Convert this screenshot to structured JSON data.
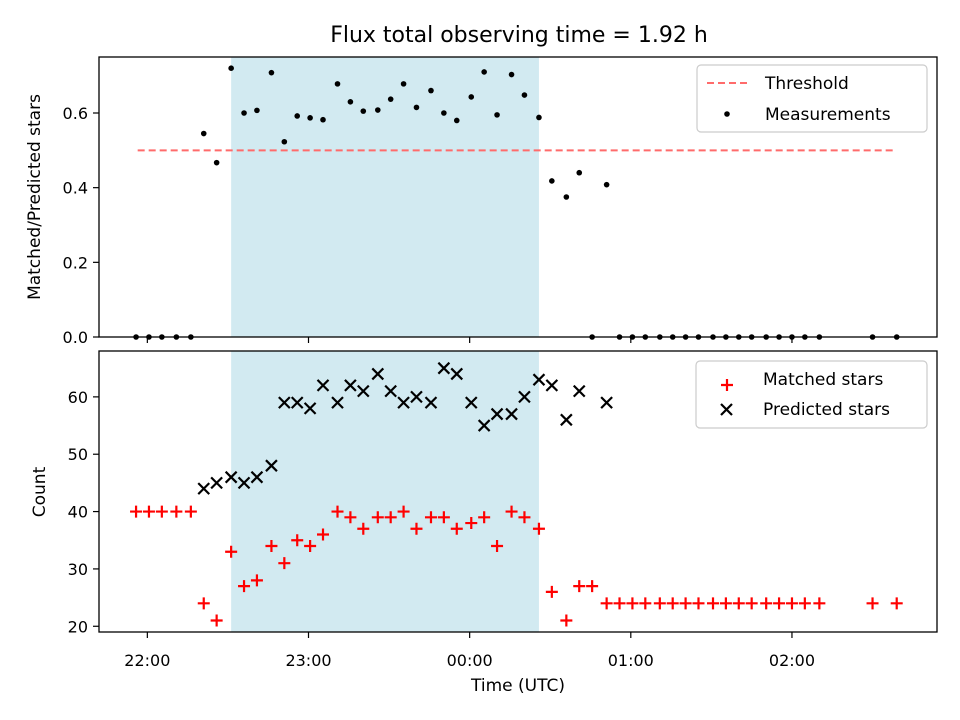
{
  "title": "Flux total observing time = 1.92 h",
  "x_axis": {
    "label": "Time (UTC)",
    "range_hours": [
      -0.3,
      4.9
    ],
    "ticks": [
      {
        "hours": 0,
        "label": "22:00"
      },
      {
        "hours": 1,
        "label": "23:00"
      },
      {
        "hours": 2,
        "label": "00:00"
      },
      {
        "hours": 3,
        "label": "01:00"
      },
      {
        "hours": 4,
        "label": "02:00"
      }
    ]
  },
  "shaded_window_hours": [
    0.52,
    2.43
  ],
  "colors": {
    "shade": "#add8e6",
    "threshold": "#ff6b6b",
    "matched": "#ff0000",
    "predicted": "#000000",
    "measurement": "#000000"
  },
  "chart_data": [
    {
      "type": "scatter",
      "ylabel": "Matched/Predicted stars",
      "ylim": [
        0,
        0.75
      ],
      "yticks": [
        "0.0",
        "0.2",
        "0.4",
        "0.6"
      ],
      "legend": {
        "placement": "top-right",
        "entries": [
          "Threshold",
          "Measurements"
        ]
      },
      "threshold": {
        "name": "Threshold",
        "value": 0.5,
        "x_range_hours": [
          -0.06,
          4.63
        ]
      },
      "series": [
        {
          "name": "Measurements",
          "points": [
            [
              -0.07,
              0.0
            ],
            [
              0.01,
              0.0
            ],
            [
              0.09,
              0.0
            ],
            [
              0.18,
              0.0
            ],
            [
              0.27,
              0.0
            ],
            [
              0.35,
              0.545
            ],
            [
              0.43,
              0.467
            ],
            [
              0.52,
              0.72
            ],
            [
              0.6,
              0.6
            ],
            [
              0.68,
              0.607
            ],
            [
              0.77,
              0.708
            ],
            [
              0.85,
              0.523
            ],
            [
              0.93,
              0.592
            ],
            [
              1.01,
              0.587
            ],
            [
              1.09,
              0.582
            ],
            [
              1.18,
              0.678
            ],
            [
              1.26,
              0.63
            ],
            [
              1.34,
              0.605
            ],
            [
              1.43,
              0.608
            ],
            [
              1.51,
              0.637
            ],
            [
              1.59,
              0.678
            ],
            [
              1.67,
              0.615
            ],
            [
              1.76,
              0.66
            ],
            [
              1.84,
              0.6
            ],
            [
              1.92,
              0.58
            ],
            [
              2.01,
              0.643
            ],
            [
              2.09,
              0.71
            ],
            [
              2.17,
              0.595
            ],
            [
              2.26,
              0.703
            ],
            [
              2.34,
              0.648
            ],
            [
              2.43,
              0.588
            ],
            [
              2.51,
              0.418
            ],
            [
              2.6,
              0.375
            ],
            [
              2.68,
              0.44
            ],
            [
              2.76,
              0.0
            ],
            [
              2.85,
              0.408
            ],
            [
              2.93,
              0.0
            ],
            [
              3.01,
              0.0
            ],
            [
              3.09,
              0.0
            ],
            [
              3.18,
              0.0
            ],
            [
              3.26,
              0.0
            ],
            [
              3.34,
              0.0
            ],
            [
              3.42,
              0.0
            ],
            [
              3.51,
              0.0
            ],
            [
              3.59,
              0.0
            ],
            [
              3.67,
              0.0
            ],
            [
              3.75,
              0.0
            ],
            [
              3.84,
              0.0
            ],
            [
              3.92,
              0.0
            ],
            [
              4.0,
              0.0
            ],
            [
              4.08,
              0.0
            ],
            [
              4.17,
              0.0
            ],
            [
              4.5,
              0.0
            ],
            [
              4.65,
              0.0
            ]
          ]
        }
      ]
    },
    {
      "type": "scatter",
      "ylabel": "Count",
      "ylim": [
        19,
        68
      ],
      "yticks": [
        "20",
        "30",
        "40",
        "50",
        "60"
      ],
      "legend": {
        "placement": "top-right",
        "entries": [
          "Matched stars",
          "Predicted stars"
        ]
      },
      "series": [
        {
          "name": "Matched stars",
          "marker": "plus",
          "points": [
            [
              -0.07,
              40
            ],
            [
              0.01,
              40
            ],
            [
              0.09,
              40
            ],
            [
              0.18,
              40
            ],
            [
              0.27,
              40
            ],
            [
              0.35,
              24
            ],
            [
              0.43,
              21
            ],
            [
              0.52,
              33
            ],
            [
              0.6,
              27
            ],
            [
              0.68,
              28
            ],
            [
              0.77,
              34
            ],
            [
              0.85,
              31
            ],
            [
              0.93,
              35
            ],
            [
              1.01,
              34
            ],
            [
              1.09,
              36
            ],
            [
              1.18,
              40
            ],
            [
              1.26,
              39
            ],
            [
              1.34,
              37
            ],
            [
              1.43,
              39
            ],
            [
              1.51,
              39
            ],
            [
              1.59,
              40
            ],
            [
              1.67,
              37
            ],
            [
              1.76,
              39
            ],
            [
              1.84,
              39
            ],
            [
              1.92,
              37
            ],
            [
              2.01,
              38
            ],
            [
              2.09,
              39
            ],
            [
              2.17,
              34
            ],
            [
              2.26,
              40
            ],
            [
              2.34,
              39
            ],
            [
              2.43,
              37
            ],
            [
              2.51,
              26
            ],
            [
              2.6,
              21
            ],
            [
              2.68,
              27
            ],
            [
              2.76,
              27
            ],
            [
              2.85,
              24
            ],
            [
              2.93,
              24
            ],
            [
              3.01,
              24
            ],
            [
              3.09,
              24
            ],
            [
              3.18,
              24
            ],
            [
              3.26,
              24
            ],
            [
              3.34,
              24
            ],
            [
              3.42,
              24
            ],
            [
              3.51,
              24
            ],
            [
              3.59,
              24
            ],
            [
              3.67,
              24
            ],
            [
              3.75,
              24
            ],
            [
              3.84,
              24
            ],
            [
              3.92,
              24
            ],
            [
              4.0,
              24
            ],
            [
              4.08,
              24
            ],
            [
              4.17,
              24
            ],
            [
              4.5,
              24
            ],
            [
              4.65,
              24
            ]
          ]
        },
        {
          "name": "Predicted stars",
          "marker": "x",
          "points": [
            [
              0.35,
              44
            ],
            [
              0.43,
              45
            ],
            [
              0.52,
              46
            ],
            [
              0.6,
              45
            ],
            [
              0.68,
              46
            ],
            [
              0.77,
              48
            ],
            [
              0.85,
              59
            ],
            [
              0.93,
              59
            ],
            [
              1.01,
              58
            ],
            [
              1.09,
              62
            ],
            [
              1.18,
              59
            ],
            [
              1.26,
              62
            ],
            [
              1.34,
              61
            ],
            [
              1.43,
              64
            ],
            [
              1.51,
              61
            ],
            [
              1.59,
              59
            ],
            [
              1.67,
              60
            ],
            [
              1.76,
              59
            ],
            [
              1.84,
              65
            ],
            [
              1.92,
              64
            ],
            [
              2.01,
              59
            ],
            [
              2.09,
              55
            ],
            [
              2.17,
              57
            ],
            [
              2.26,
              57
            ],
            [
              2.34,
              60
            ],
            [
              2.43,
              63
            ],
            [
              2.51,
              62
            ],
            [
              2.6,
              56
            ],
            [
              2.68,
              61
            ],
            [
              2.85,
              59
            ]
          ]
        }
      ]
    }
  ]
}
